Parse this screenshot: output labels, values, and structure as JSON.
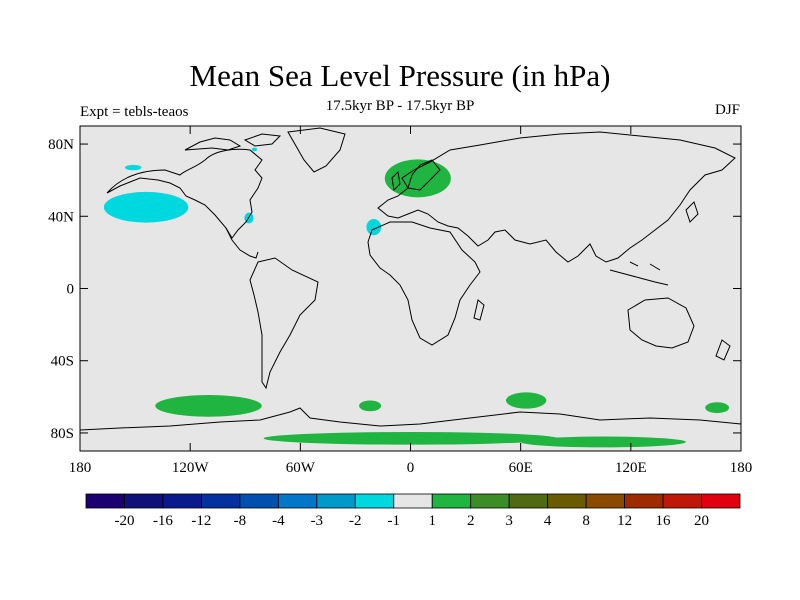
{
  "title": "Mean Sea Level Pressure (in hPa)",
  "subtitle": "17.5kyr BP - 17.5kyr BP",
  "experiment_label": "Expt = tebls-teaos",
  "season_label": "DJF",
  "map": {
    "projection": "cylindrical equidistant",
    "lon_range": [
      -180,
      180
    ],
    "lat_range": [
      -90,
      90
    ],
    "background_color": "#e6e6e6",
    "coastline_color": "#000000",
    "x_ticks": [
      {
        "lon": -180,
        "label": "180"
      },
      {
        "lon": -120,
        "label": "120W"
      },
      {
        "lon": -60,
        "label": "60W"
      },
      {
        "lon": 0,
        "label": "0"
      },
      {
        "lon": 60,
        "label": "60E"
      },
      {
        "lon": 120,
        "label": "120E"
      },
      {
        "lon": 180,
        "label": "180"
      }
    ],
    "y_ticks": [
      {
        "lat": 80,
        "label": "80N"
      },
      {
        "lat": 40,
        "label": "40N"
      },
      {
        "lat": 0,
        "label": "0"
      },
      {
        "lat": -40,
        "label": "40S"
      },
      {
        "lat": -80,
        "label": "80S"
      }
    ],
    "anomaly_regions": [
      {
        "name": "north-pacific-low",
        "sign": "negative",
        "color": "#00d8e0",
        "center_lon": -144,
        "center_lat": 45,
        "width_deg": 46,
        "height_deg": 17
      },
      {
        "name": "alaska-patch",
        "sign": "negative",
        "color": "#00d8e0",
        "center_lon": -151,
        "center_lat": 67,
        "width_deg": 9,
        "height_deg": 3
      },
      {
        "name": "arctic-canada-patch",
        "sign": "negative",
        "color": "#00d8e0",
        "center_lon": -85,
        "center_lat": 77,
        "width_deg": 3,
        "height_deg": 2
      },
      {
        "name": "east-us-patch",
        "sign": "negative",
        "color": "#00d8e0",
        "center_lon": -88,
        "center_lat": 39,
        "width_deg": 5,
        "height_deg": 6
      },
      {
        "name": "north-atlantic-patch",
        "sign": "negative",
        "color": "#00d8e0",
        "center_lon": -20,
        "center_lat": 34,
        "width_deg": 8,
        "height_deg": 9
      },
      {
        "name": "europe-high",
        "sign": "positive",
        "color": "#20b440",
        "center_lon": 4,
        "center_lat": 61,
        "width_deg": 36,
        "height_deg": 21
      },
      {
        "name": "southern-ocean-pacific",
        "sign": "positive",
        "color": "#20b440",
        "center_lon": -110,
        "center_lat": -65,
        "width_deg": 58,
        "height_deg": 12
      },
      {
        "name": "southern-ocean-atlantic",
        "sign": "positive",
        "color": "#20b440",
        "center_lon": -22,
        "center_lat": -65,
        "width_deg": 12,
        "height_deg": 6
      },
      {
        "name": "southern-ocean-indian",
        "sign": "positive",
        "color": "#20b440",
        "center_lon": 63,
        "center_lat": -62,
        "width_deg": 22,
        "height_deg": 9
      },
      {
        "name": "southern-ocean-east",
        "sign": "positive",
        "color": "#20b440",
        "center_lon": 167,
        "center_lat": -66,
        "width_deg": 13,
        "height_deg": 6
      },
      {
        "name": "antarctic-coast-band",
        "sign": "positive",
        "color": "#20b440",
        "center_lon": 0,
        "center_lat": -83,
        "width_deg": 160,
        "height_deg": 7
      },
      {
        "name": "antarctic-interior",
        "sign": "positive",
        "color": "#20b440",
        "center_lon": 105,
        "center_lat": -85,
        "width_deg": 90,
        "height_deg": 6
      }
    ]
  },
  "colorbar": {
    "colors": [
      "#1a0070",
      "#10107a",
      "#0a1a8c",
      "#0530a0",
      "#0050b0",
      "#0077c8",
      "#0099cc",
      "#00d8e0",
      "#e6e6e6",
      "#20b440",
      "#3c8c28",
      "#506a14",
      "#6a5a00",
      "#8a4a00",
      "#a02a00",
      "#c01808",
      "#e00010"
    ],
    "labels": [
      "-20",
      "-16",
      "-12",
      "-8",
      "-4",
      "-3",
      "-2",
      "-1",
      "1",
      "2",
      "3",
      "4",
      "8",
      "12",
      "16",
      "20"
    ]
  }
}
